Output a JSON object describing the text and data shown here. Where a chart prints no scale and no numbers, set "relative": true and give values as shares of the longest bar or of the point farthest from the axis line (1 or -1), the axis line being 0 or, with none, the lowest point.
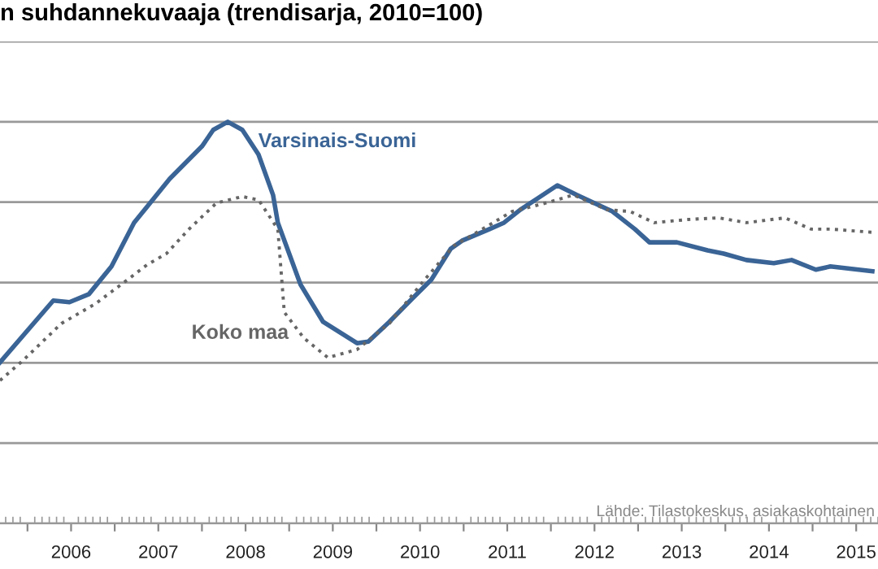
{
  "chart_data": {
    "type": "line",
    "title": "n suhdannekuvaaja (trendisarja, 2010=100)",
    "relative": true,
    "xlim": [
      2005.685,
      2015.75
    ],
    "xticks": [
      {
        "value": 2006,
        "label": null
      },
      {
        "value": 2006.5,
        "label": "2006"
      },
      {
        "value": 2007,
        "label": null
      },
      {
        "value": 2007.5,
        "label": "2007"
      },
      {
        "value": 2008,
        "label": null
      },
      {
        "value": 2008.5,
        "label": "2008"
      },
      {
        "value": 2009,
        "label": null
      },
      {
        "value": 2009.5,
        "label": "2009"
      },
      {
        "value": 2010,
        "label": null
      },
      {
        "value": 2010.5,
        "label": "2010"
      },
      {
        "value": 2011,
        "label": null
      },
      {
        "value": 2011.5,
        "label": "2011"
      },
      {
        "value": 2012,
        "label": null
      },
      {
        "value": 2012.5,
        "label": "2012"
      },
      {
        "value": 2013,
        "label": null
      },
      {
        "value": 2013.5,
        "label": "2013"
      },
      {
        "value": 2014,
        "label": null
      },
      {
        "value": 2014.5,
        "label": "2014"
      },
      {
        "value": 2015,
        "label": null
      },
      {
        "value": 2015.5,
        "label": "2015"
      }
    ],
    "grid": "y",
    "tick_labels": "x",
    "legend": false,
    "annotations": [
      "Lähde: Tilastokeskus, asiakaskohtainen"
    ],
    "series": [
      {
        "name": "Varsinais-Suomi",
        "color": "#3a6496",
        "line_style": "solid",
        "x": [
          2005.685,
          2006.296,
          2006.481,
          2006.704,
          2006.963,
          2007.222,
          2007.481,
          2007.63,
          2008.0,
          2008.13,
          2008.296,
          2008.463,
          2008.648,
          2008.815,
          2008.87,
          2009.13,
          2009.389,
          2009.778,
          2009.907,
          2010.148,
          2010.407,
          2010.63,
          2010.852,
          2010.981,
          2011.296,
          2011.463,
          2011.648,
          2011.852,
          2012.074,
          2012.296,
          2012.704,
          2012.963,
          2013.13,
          2013.444,
          2013.796,
          2013.981,
          2014.241,
          2014.556,
          2014.759,
          2015.037,
          2015.204,
          2015.685
        ],
        "values": [
          0.401,
          0.555,
          0.551,
          0.571,
          0.64,
          0.749,
          0.818,
          0.858,
          0.939,
          0.98,
          1.0,
          0.98,
          0.919,
          0.818,
          0.749,
          0.595,
          0.502,
          0.449,
          0.453,
          0.502,
          0.559,
          0.607,
          0.684,
          0.704,
          0.733,
          0.749,
          0.781,
          0.81,
          0.842,
          0.818,
          0.777,
          0.733,
          0.7,
          0.7,
          0.68,
          0.672,
          0.656,
          0.648,
          0.656,
          0.632,
          0.64,
          0.628
        ]
      },
      {
        "name": "Koko maa",
        "color": "#666666",
        "line_style": "dotted",
        "x": [
          2005.685,
          2005.944,
          2006.389,
          2006.778,
          2007.148,
          2007.37,
          2007.593,
          2007.852,
          2008.167,
          2008.463,
          2008.648,
          2008.87,
          2008.944,
          2009.167,
          2009.444,
          2009.778,
          2010.148,
          2010.537,
          2010.889,
          2011.185,
          2011.556,
          2011.944,
          2012.259,
          2012.648,
          2012.907,
          2013.185,
          2013.574,
          2013.926,
          2014.241,
          2014.685,
          2014.981,
          2015.204,
          2015.685
        ],
        "values": [
          0.356,
          0.405,
          0.498,
          0.547,
          0.607,
          0.644,
          0.672,
          0.733,
          0.798,
          0.814,
          0.806,
          0.733,
          0.526,
          0.462,
          0.413,
          0.433,
          0.498,
          0.603,
          0.692,
          0.729,
          0.777,
          0.798,
          0.818,
          0.781,
          0.777,
          0.749,
          0.757,
          0.761,
          0.749,
          0.761,
          0.733,
          0.733,
          0.725
        ]
      }
    ]
  }
}
